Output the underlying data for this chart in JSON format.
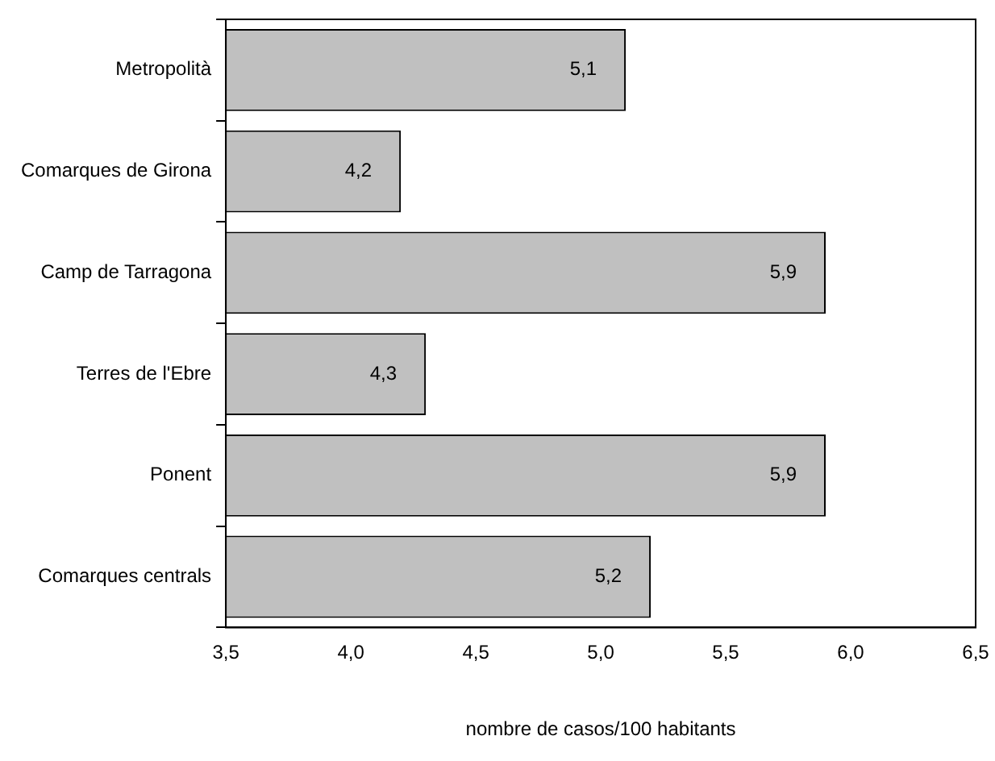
{
  "chart_data": {
    "type": "bar",
    "orientation": "horizontal",
    "xlabel": "nombre de casos/100 habitants",
    "categories": [
      "Metropolità",
      "Comarques de Girona",
      "Camp de Tarragona",
      "Terres de l'Ebre",
      "Ponent",
      "Comarques centrals"
    ],
    "values": [
      5.1,
      4.2,
      5.9,
      4.3,
      5.9,
      5.2
    ],
    "value_labels": [
      "5,1",
      "4,2",
      "5,9",
      "4,3",
      "5,9",
      "5,2"
    ],
    "color": "#c0c0c0",
    "xlim": [
      3.5,
      6.5
    ],
    "xticks": [
      {
        "value": 3.5,
        "label": "3,5"
      },
      {
        "value": 4,
        "label": "4,0"
      },
      {
        "value": 4.5,
        "label": "4,5"
      },
      {
        "value": 5,
        "label": "5,0"
      },
      {
        "value": 5.5,
        "label": "5,5"
      },
      {
        "value": 6,
        "label": "6,0"
      },
      {
        "value": 6.5,
        "label": "6,5"
      }
    ],
    "grid": false,
    "legend": false
  }
}
